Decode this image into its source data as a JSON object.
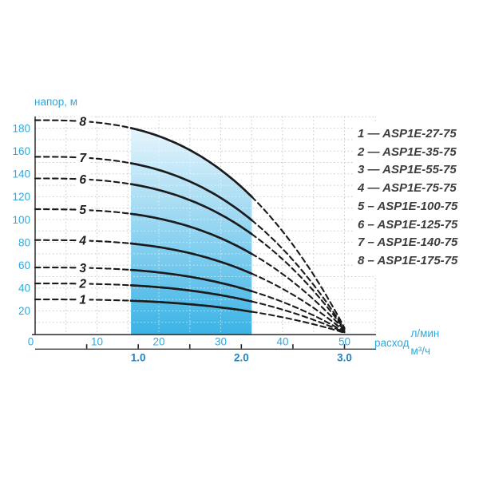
{
  "labels": {
    "y_axis_title": "напор, м",
    "x_axis_title": "расход",
    "x_unit_primary": "л/мин",
    "x_unit_secondary": "м³/ч"
  },
  "colors": {
    "accent_cyan": "#29abe2",
    "secondary_blue": "#1d84c5",
    "curve": "#1b1b1d",
    "grid": "#c8ccd0",
    "band_top": "#e6f5fc",
    "band_bottom": "#3cb3e5",
    "legend_text": "#3d3d3f",
    "axis_line": "#3a3a3a"
  },
  "y_axis": {
    "tick_labels": [
      180,
      160,
      140,
      120,
      100,
      80,
      60,
      40,
      20
    ]
  },
  "x_axis_lmin": {
    "tick_labels": [
      0,
      10,
      20,
      30,
      40,
      50
    ]
  },
  "x_axis_m3h": {
    "tick_labels": [
      "1.0",
      "2.0",
      "3.0"
    ],
    "tick_values_m3h": [
      1,
      2,
      3
    ],
    "minor_tick_values_m3h": [
      0.5,
      1.5,
      2.5
    ]
  },
  "chart_data": {
    "type": "line",
    "title": "",
    "ylabel": "напор, м",
    "xlabel": "расход",
    "x_units": [
      "л/мин",
      "м³/ч"
    ],
    "x_lmin": [
      0,
      10,
      20,
      30,
      40,
      50
    ],
    "ylim": [
      0,
      190
    ],
    "xlim_lmin": [
      0,
      55
    ],
    "grid": {
      "x_step_lmin": 5,
      "y_step_m": 10
    },
    "legend_position": "right",
    "working_band_lmin": [
      15.5,
      35
    ],
    "curve_model": {
      "formula": "H = Hmax*(1-(q/50.5)^2.8)",
      "exponent": 2.8,
      "q_at_zero_head_lmin": 50.5,
      "label_q_lmin": 7.7
    },
    "series": [
      {
        "curve_no": 1,
        "name": "ASP1E-27-75",
        "max_head_m": 30,
        "head_m": [
          30,
          30,
          28,
          23,
          14,
          1
        ]
      },
      {
        "curve_no": 2,
        "name": "ASP1E-35-75",
        "max_head_m": 44,
        "head_m": [
          44,
          44,
          41,
          34,
          21,
          1
        ]
      },
      {
        "curve_no": 3,
        "name": "ASP1E-55-75",
        "max_head_m": 58,
        "head_m": [
          58,
          57,
          54,
          44,
          28,
          2
        ]
      },
      {
        "curve_no": 4,
        "name": "ASP1E-75-75",
        "max_head_m": 82,
        "head_m": [
          82,
          81,
          76,
          63,
          39,
          2
        ]
      },
      {
        "curve_no": 5,
        "name": "ASP1E-100-75",
        "max_head_m": 109,
        "head_m": [
          109,
          108,
          101,
          84,
          52,
          3
        ]
      },
      {
        "curve_no": 6,
        "name": "ASP1E-125-75",
        "max_head_m": 136,
        "head_m": [
          136,
          135,
          126,
          104,
          65,
          4
        ]
      },
      {
        "curve_no": 7,
        "name": "ASP1E-140-75",
        "max_head_m": 155,
        "head_m": [
          155,
          153,
          143,
          119,
          74,
          4
        ]
      },
      {
        "curve_no": 8,
        "name": "ASP1E-175-75",
        "max_head_m": 187,
        "head_m": [
          187,
          185,
          173,
          143,
          90,
          5
        ]
      }
    ]
  },
  "legend": {
    "items": [
      {
        "no": "1",
        "sep": "—",
        "model": "ASP1E-27-75"
      },
      {
        "no": "2",
        "sep": "—",
        "model": "ASP1E-35-75"
      },
      {
        "no": "3",
        "sep": "—",
        "model": "ASP1E-55-75"
      },
      {
        "no": "4",
        "sep": "—",
        "model": "ASP1E-75-75"
      },
      {
        "no": "5",
        "sep": "–",
        "model": "ASP1E-100-75"
      },
      {
        "no": "6",
        "sep": "–",
        "model": "ASP1E-125-75"
      },
      {
        "no": "7",
        "sep": "–",
        "model": "ASP1E-140-75"
      },
      {
        "no": "8",
        "sep": "–",
        "model": "ASP1E-175-75"
      }
    ]
  }
}
